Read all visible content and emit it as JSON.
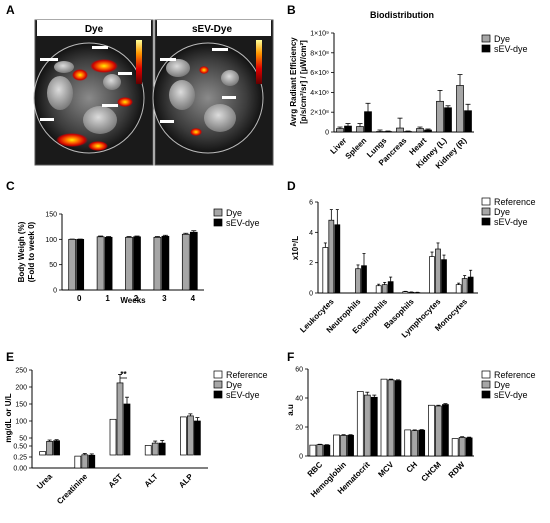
{
  "panel_labels": [
    "A",
    "B",
    "C",
    "D",
    "E",
    "F"
  ],
  "image_panel": {
    "images": [
      {
        "label": "Dye"
      },
      {
        "label": "sEV-Dye"
      }
    ]
  },
  "colors": {
    "Reference": "#ffffff",
    "Dye": "#a6a6a6",
    "sEV-dye": "#000000",
    "axis": "#000000"
  },
  "chart_data": [
    {
      "id": "B",
      "type": "bar",
      "title": "Biodistribution",
      "ylabel_lines": [
        "Avrg Radiant Efficiency",
        "[p/s/cm²/sr] / [µW/cm²]"
      ],
      "ytick_labels": [
        "0",
        "2×10⁸",
        "4×10⁸",
        "6×10⁸",
        "8×10⁸",
        "1×10⁹"
      ],
      "ylim": [
        0,
        1000000000
      ],
      "categories": [
        "Liver",
        "Spleen",
        "Lungs",
        "Pancreas",
        "Heart",
        "Kidney (L)",
        "Kidney (R)"
      ],
      "series": [
        {
          "name": "Dye",
          "values": [
            35000000,
            55000000,
            5000000,
            40000000,
            35000000,
            310000000,
            470000000
          ],
          "errors": [
            15000000,
            30000000,
            15000000,
            100000000,
            15000000,
            110000000,
            110000000
          ]
        },
        {
          "name": "sEV-dye",
          "values": [
            60000000,
            205000000,
            5000000,
            5000000,
            20000000,
            245000000,
            215000000
          ],
          "errors": [
            25000000,
            85000000,
            5000000,
            5000000,
            10000000,
            20000000,
            65000000
          ]
        }
      ],
      "legend": "top-right"
    },
    {
      "id": "C",
      "type": "bar",
      "ylabel_lines": [
        "Body Weigh (%)",
        "(Fold to week 0)"
      ],
      "xlabel": "Weeks",
      "ytick_labels": [
        "0",
        "50",
        "100",
        "150"
      ],
      "ylim": [
        0,
        150
      ],
      "categories": [
        "0",
        "1",
        "2",
        "3",
        "4"
      ],
      "series": [
        {
          "name": "Dye",
          "values": [
            100,
            105,
            104,
            104,
            110
          ],
          "errors": [
            0.5,
            1.5,
            1.5,
            1.5,
            2
          ]
        },
        {
          "name": "sEV-dye",
          "values": [
            100,
            104,
            105,
            106,
            114
          ],
          "errors": [
            0.5,
            1.5,
            1.5,
            2,
            3
          ]
        }
      ],
      "legend": "top-right"
    },
    {
      "id": "D",
      "type": "bar",
      "ylabel": "x10⁹/L",
      "ytick_labels": [
        "0",
        "2",
        "4",
        "6"
      ],
      "ylim": [
        0,
        6
      ],
      "categories": [
        "Leukocytes",
        "Neutrophils",
        "Eosinophils",
        "Basophils",
        "Lymphocytes",
        "Monocytes"
      ],
      "series": [
        {
          "name": "Reference",
          "values": [
            3.0,
            0,
            0.48,
            0.09,
            2.4,
            0.55
          ],
          "errors": [
            0.3,
            0,
            0.1,
            0.02,
            0.3,
            0.1
          ]
        },
        {
          "name": "Dye",
          "values": [
            4.8,
            1.6,
            0.55,
            0.05,
            2.9,
            0.95
          ],
          "errors": [
            0.7,
            0.25,
            0.15,
            0.02,
            0.4,
            0.2
          ]
        },
        {
          "name": "sEV-dye",
          "values": [
            4.5,
            1.8,
            0.75,
            0.03,
            2.2,
            1.05
          ],
          "errors": [
            1.0,
            0.8,
            0.3,
            0.02,
            0.3,
            0.45
          ]
        }
      ],
      "legend": "top-right"
    },
    {
      "id": "E",
      "type": "bar",
      "ylabel": "mg/dL or U/L",
      "ytick_labels": [
        "0.00",
        "0.25",
        "0.50",
        "50",
        "100",
        "150",
        "200",
        "250"
      ],
      "y_broken": true,
      "categories": [
        "Urea",
        "Creatinine",
        "AST",
        "ALT",
        "ALP"
      ],
      "series": [
        {
          "name": "Reference",
          "values": [
            10,
            0.27,
            105,
            28,
            112
          ],
          "errors": [
            0,
            0,
            0,
            0,
            0
          ]
        },
        {
          "name": "Dye",
          "values": [
            40,
            0.3,
            212,
            35,
            115
          ],
          "errors": [
            4,
            0.03,
            25,
            6,
            6
          ]
        },
        {
          "name": "sEV-dye",
          "values": [
            42,
            0.29,
            150,
            35,
            100
          ],
          "errors": [
            3,
            0.03,
            20,
            8,
            10
          ]
        }
      ],
      "annotation": "**",
      "legend": "top-right"
    },
    {
      "id": "F",
      "type": "bar",
      "ylabel": "a.u",
      "ytick_labels": [
        "0",
        "20",
        "40",
        "60"
      ],
      "ylim": [
        0,
        60
      ],
      "categories": [
        "RBC",
        "Hemoglobin",
        "Hematocrit",
        "MCV",
        "CH",
        "CHCM",
        "RDW"
      ],
      "series": [
        {
          "name": "Reference",
          "values": [
            7.5,
            14.5,
            44.5,
            53,
            18,
            35,
            12
          ],
          "errors": [
            0,
            0,
            0,
            0,
            0,
            0,
            0
          ]
        },
        {
          "name": "Dye",
          "values": [
            7.8,
            14.2,
            42,
            52.5,
            17.5,
            34.5,
            12.8
          ],
          "errors": [
            0.3,
            0.5,
            2,
            0.5,
            0.5,
            0.5,
            0.5
          ]
        },
        {
          "name": "sEV-dye",
          "values": [
            7.5,
            14.3,
            40.5,
            52,
            17.8,
            35.5,
            12.5
          ],
          "errors": [
            0.3,
            0.4,
            1.5,
            0.5,
            0.4,
            0.6,
            0.5
          ]
        }
      ],
      "legend": "top-right"
    }
  ]
}
